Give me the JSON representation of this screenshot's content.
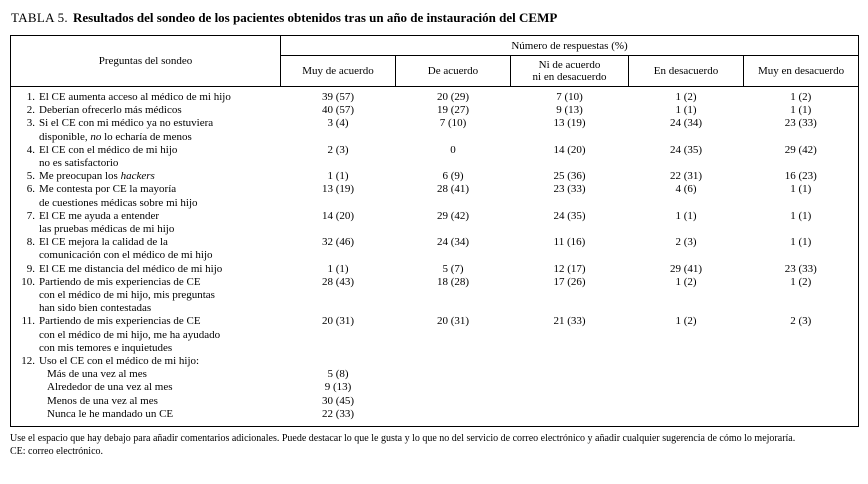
{
  "title": {
    "label": "TABLA 5.",
    "text": "Resultados del sondeo de los pacientes obtenidos tras un año de instauración del CEMP"
  },
  "table": {
    "question_header": "Preguntas del sondeo",
    "responses_header": "Número de respuestas (%)",
    "columns": [
      "Muy de acuerdo",
      "De acuerdo",
      "Ni de acuerdo\nni en desacuerdo",
      "En desacuerdo",
      "Muy en desacuerdo"
    ],
    "rows": [
      {
        "num": "1.",
        "lines": [
          [
            {
              "t": "El CE aumenta acceso al médico de mi hijo"
            }
          ]
        ],
        "values": [
          "39 (57)",
          "20 (29)",
          "7 (10)",
          "1 (2)",
          "1 (2)"
        ]
      },
      {
        "num": "2.",
        "lines": [
          [
            {
              "t": "Deberían ofrecerlo más médicos"
            }
          ]
        ],
        "values": [
          "40 (57)",
          "19 (27)",
          "9 (13)",
          "1 (1)",
          "1 (1)"
        ]
      },
      {
        "num": "3.",
        "lines": [
          [
            {
              "t": "Si el CE con mi médico ya no estuviera"
            }
          ],
          [
            {
              "t": "disponible, "
            },
            {
              "t": "no",
              "i": true
            },
            {
              "t": " lo echaría de menos"
            }
          ]
        ],
        "values": [
          "3 (4)",
          "7 (10)",
          "13 (19)",
          "24 (34)",
          "23 (33)"
        ]
      },
      {
        "num": "4.",
        "lines": [
          [
            {
              "t": "El CE con el médico de mi hijo"
            }
          ],
          [
            {
              "t": "no es satisfactorio"
            }
          ]
        ],
        "values": [
          "2 (3)",
          "0",
          "14 (20)",
          "24 (35)",
          "29 (42)"
        ]
      },
      {
        "num": "5.",
        "lines": [
          [
            {
              "t": "Me preocupan los "
            },
            {
              "t": "hackers",
              "i": true
            }
          ]
        ],
        "values": [
          "1 (1)",
          "6 (9)",
          "25 (36)",
          "22 (31)",
          "16 (23)"
        ]
      },
      {
        "num": "6.",
        "lines": [
          [
            {
              "t": "Me contesta por CE la mayoría"
            }
          ],
          [
            {
              "t": "de cuestiones médicas sobre mi hijo"
            }
          ]
        ],
        "values": [
          "13 (19)",
          "28 (41)",
          "23 (33)",
          "4 (6)",
          "1 (1)"
        ]
      },
      {
        "num": "7.",
        "lines": [
          [
            {
              "t": "El CE me ayuda a entender"
            }
          ],
          [
            {
              "t": "las pruebas médicas de mi hijo"
            }
          ]
        ],
        "values": [
          "14 (20)",
          "29 (42)",
          "24 (35)",
          "1 (1)",
          "1 (1)"
        ]
      },
      {
        "num": "8.",
        "lines": [
          [
            {
              "t": "El CE mejora la calidad de la"
            }
          ],
          [
            {
              "t": "comunicación con el médico de mi hijo"
            }
          ]
        ],
        "values": [
          "32 (46)",
          "24 (34)",
          "11 (16)",
          "2 (3)",
          "1 (1)"
        ]
      },
      {
        "num": "9.",
        "lines": [
          [
            {
              "t": "El CE me distancia del médico de mi hijo"
            }
          ]
        ],
        "values": [
          "1 (1)",
          "5 (7)",
          "12 (17)",
          "29 (41)",
          "23 (33)"
        ]
      },
      {
        "num": "10.",
        "lines": [
          [
            {
              "t": "Partiendo de mis experiencias de CE"
            }
          ],
          [
            {
              "t": "con el médico de mi hijo, mis preguntas"
            }
          ],
          [
            {
              "t": "han sido bien contestadas"
            }
          ]
        ],
        "values": [
          "28 (43)",
          "18 (28)",
          "17 (26)",
          "1 (2)",
          "1 (2)"
        ]
      },
      {
        "num": "11.",
        "lines": [
          [
            {
              "t": "Partiendo de mis experiencias de CE"
            }
          ],
          [
            {
              "t": "con el médico de mi hijo, me ha ayudado"
            }
          ],
          [
            {
              "t": "con mis temores e inquietudes"
            }
          ]
        ],
        "values": [
          "20 (31)",
          "20 (31)",
          "21 (33)",
          "1 (2)",
          "2 (3)"
        ]
      },
      {
        "num": "12.",
        "lines": [
          [
            {
              "t": "Uso el CE con el médico de mi hijo:"
            }
          ]
        ],
        "values": [
          "",
          "",
          "",
          "",
          ""
        ]
      },
      {
        "sub": true,
        "lines": [
          [
            {
              "t": "Más de una vez al mes"
            }
          ]
        ],
        "values": [
          "5 (8)",
          "",
          "",
          "",
          ""
        ]
      },
      {
        "sub": true,
        "lines": [
          [
            {
              "t": "Alrededor de una vez al mes"
            }
          ]
        ],
        "values": [
          "9 (13)",
          "",
          "",
          "",
          ""
        ]
      },
      {
        "sub": true,
        "lines": [
          [
            {
              "t": "Menos de una vez al mes"
            }
          ]
        ],
        "values": [
          "30 (45)",
          "",
          "",
          "",
          ""
        ]
      },
      {
        "sub": true,
        "lines": [
          [
            {
              "t": "Nunca le he mandado un CE"
            }
          ]
        ],
        "values": [
          "22 (33)",
          "",
          "",
          "",
          ""
        ]
      }
    ]
  },
  "footnotes": [
    "Use el espacio que hay debajo para añadir comentarios adicionales. Puede destacar lo que le gusta y lo que no del servicio de correo electrónico y añadir cualquier sugerencia de cómo lo mejoraría.",
    "CE: correo electrónico."
  ]
}
